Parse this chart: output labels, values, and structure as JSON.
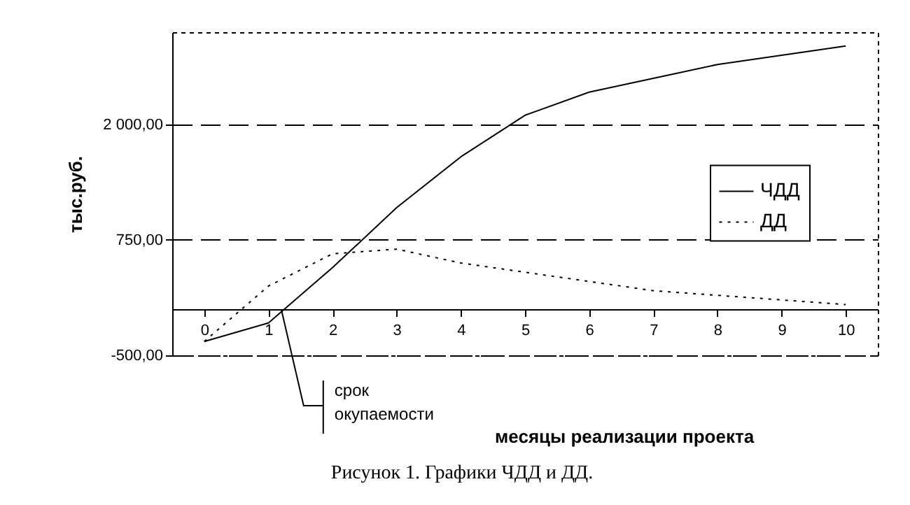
{
  "chart_data": {
    "type": "line",
    "ylabel": "тыс.руб.",
    "xlabel": "месяцы реализации проекта",
    "x": [
      0,
      1,
      2,
      3,
      4,
      5,
      6,
      7,
      8,
      9,
      10
    ],
    "series": [
      {
        "name": "ЧДД",
        "color": "#000000",
        "line_style": "solid",
        "values": [
          -350,
          -150,
          450,
          1100,
          1650,
          2100,
          2350,
          2500,
          2650,
          2750,
          2850
        ]
      },
      {
        "name": "ДД",
        "color": "#000000",
        "line_style": "dotted",
        "values": [
          -350,
          250,
          600,
          650,
          500,
          400,
          300,
          200,
          150,
          100,
          50
        ]
      }
    ],
    "xlim": [
      -0.5,
      10.5
    ],
    "xticks": [
      0,
      1,
      2,
      3,
      4,
      5,
      6,
      7,
      8,
      9,
      10
    ],
    "ylim": [
      -500,
      3000
    ],
    "yticks": [
      {
        "value": -500,
        "label": "-500,00"
      },
      {
        "value": 750,
        "label": "750,00"
      },
      {
        "value": 2000,
        "label": "2 000,00"
      }
    ],
    "grid": "y",
    "legend": "right",
    "annotations": [
      {
        "text": "срок окупаемости",
        "x": 1.2,
        "y": 0
      },
      "Рисунок 1. Графики ЧДД и ДД."
    ]
  }
}
